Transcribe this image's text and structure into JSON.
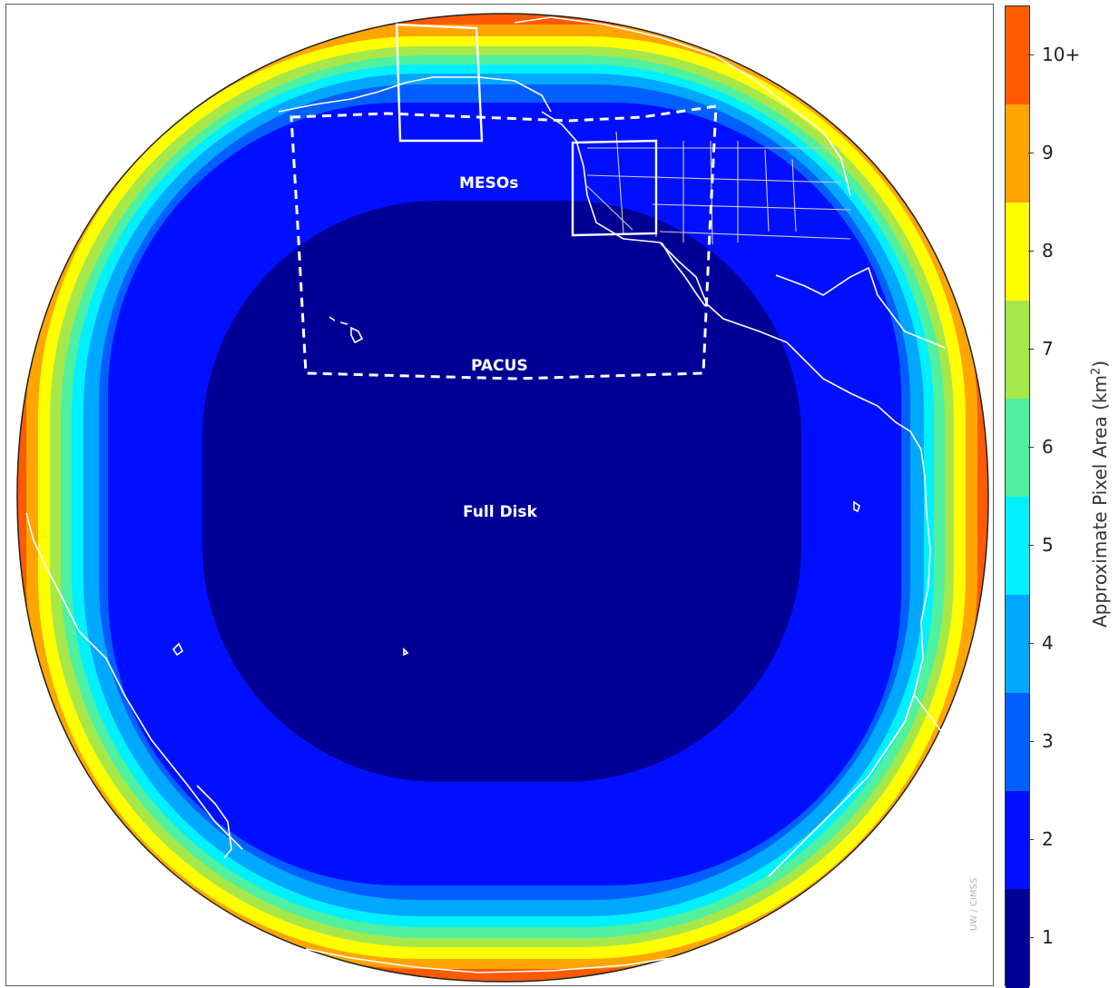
{
  "map": {
    "region_labels": {
      "mesos": "MESOs",
      "pacus": "PACUS",
      "full_disk": "Full Disk"
    },
    "credit": "UW / CIMSS",
    "colors": {
      "band_10_plus": "#ff5a00",
      "band_9": "#ffa500",
      "band_8": "#ffff00",
      "band_7": "#a6e84a",
      "band_6": "#4ff0a0",
      "band_5": "#00f0ff",
      "band_4": "#00a8ff",
      "band_3": "#0060ff",
      "band_2": "#0010ff",
      "band_1": "#000096",
      "coastline": "#ffffff",
      "sector_outline": "#ffffff"
    }
  },
  "colorbar": {
    "title": "Approximate Pixel Area (km",
    "title_superscript": "2",
    "title_close": ")",
    "ticks": [
      {
        "label": "10+",
        "color": "#ff5a00"
      },
      {
        "label": "9",
        "color": "#ffa500"
      },
      {
        "label": "8",
        "color": "#ffff00"
      },
      {
        "label": "7",
        "color": "#a6e84a"
      },
      {
        "label": "6",
        "color": "#4ff0a0"
      },
      {
        "label": "5",
        "color": "#00f0ff"
      },
      {
        "label": "4",
        "color": "#00a8ff"
      },
      {
        "label": "3",
        "color": "#0060ff"
      },
      {
        "label": "2",
        "color": "#0010ff"
      },
      {
        "label": "1",
        "color": "#000096"
      }
    ]
  }
}
